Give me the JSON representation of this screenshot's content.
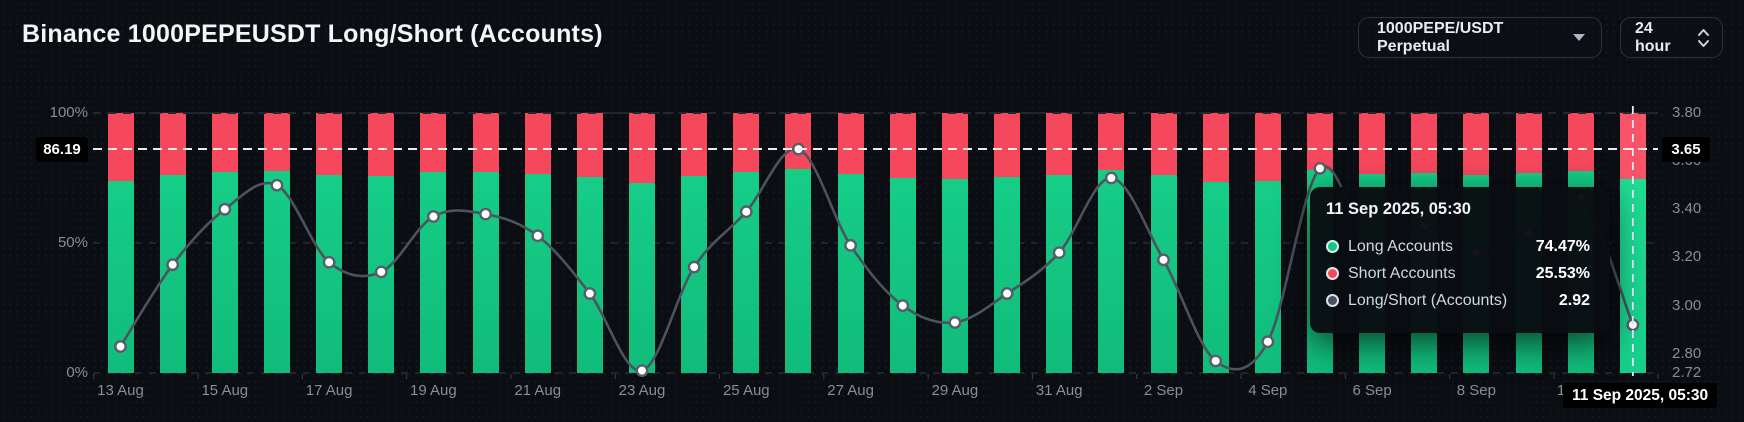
{
  "header": {
    "title": "Binance 1000PEPEUSDT Long/Short (Accounts)",
    "symbol_dropdown": "1000PEPE/USDT Perpetual",
    "interval_dropdown": "24 hour"
  },
  "colors": {
    "long": "#14C784",
    "short": "#F5485D",
    "long_highlight": "#1FDB93",
    "short_highlight": "#F9536A",
    "ratio_line": "#4C525E",
    "marker_fill": "#FFFFFF",
    "marker_ring": "#565D6B",
    "axis_text": "#878E99",
    "crosshair": "#E8EBEF",
    "grid": "#262B34",
    "label_box_bg": "#000000"
  },
  "axes": {
    "left_ticks": [
      "100%",
      "50%",
      "0%"
    ],
    "right_ticks": [
      "3.80",
      "3.60",
      "3.40",
      "3.20",
      "3.00",
      "2.80",
      "2.72"
    ],
    "x_ticks": [
      "13 Aug",
      "15 Aug",
      "17 Aug",
      "19 Aug",
      "21 Aug",
      "23 Aug",
      "25 Aug",
      "27 Aug",
      "29 Aug",
      "31 Aug",
      "2 Sep",
      "4 Sep",
      "6 Sep",
      "8 Sep",
      "10 Sep"
    ]
  },
  "crosshair": {
    "y_left_value": "86.19",
    "y_right_value": "3.65",
    "x_value": "11 Sep 2025, 05:30"
  },
  "tooltip": {
    "title": "11 Sep 2025, 05:30",
    "rows": [
      {
        "label": "Long Accounts",
        "value": "74.47%",
        "color": "#14C784"
      },
      {
        "label": "Short Accounts",
        "value": "25.53%",
        "color": "#F5485D"
      },
      {
        "label": "Long/Short (Accounts)",
        "value": "2.92",
        "color": "#4A5160"
      }
    ]
  },
  "chart_data": {
    "type": "bar",
    "subtype": "stacked-percent-bars-with-ratio-line",
    "title": "Binance 1000PEPEUSDT Long/Short (Accounts)",
    "categories": [
      "13 Aug",
      "14 Aug",
      "15 Aug",
      "16 Aug",
      "17 Aug",
      "18 Aug",
      "19 Aug",
      "20 Aug",
      "21 Aug",
      "22 Aug",
      "23 Aug",
      "24 Aug",
      "25 Aug",
      "26 Aug",
      "27 Aug",
      "28 Aug",
      "29 Aug",
      "30 Aug",
      "31 Aug",
      "1 Sep",
      "2 Sep",
      "3 Sep",
      "4 Sep",
      "5 Sep",
      "6 Sep",
      "7 Sep",
      "8 Sep",
      "9 Sep",
      "10 Sep",
      "11 Sep"
    ],
    "series": [
      {
        "name": "Long Accounts",
        "type": "bar",
        "stack": true,
        "axis": "left",
        "unit": "%",
        "values": [
          73.89,
          76.02,
          77.27,
          77.78,
          76.08,
          75.85,
          77.12,
          77.17,
          76.69,
          75.31,
          73.19,
          75.96,
          77.22,
          78.49,
          76.47,
          75.0,
          74.55,
          75.31,
          76.3,
          77.92,
          76.13,
          73.47,
          74.03,
          78.12,
          76.47,
          76.91,
          76.3,
          76.74,
          77.53,
          74.47
        ]
      },
      {
        "name": "Short Accounts",
        "type": "bar",
        "stack": true,
        "axis": "left",
        "unit": "%",
        "values": [
          26.11,
          23.98,
          22.73,
          22.22,
          23.92,
          24.15,
          22.88,
          22.83,
          23.31,
          24.69,
          26.81,
          24.04,
          22.78,
          21.51,
          23.53,
          25.0,
          25.45,
          24.69,
          23.7,
          22.08,
          23.87,
          26.53,
          25.97,
          21.88,
          23.53,
          23.09,
          23.7,
          23.26,
          22.47,
          25.53
        ]
      },
      {
        "name": "Long/Short (Accounts)",
        "type": "line",
        "axis": "right",
        "values": [
          2.83,
          3.17,
          3.4,
          3.5,
          3.18,
          3.14,
          3.37,
          3.38,
          3.29,
          3.05,
          2.73,
          3.16,
          3.39,
          3.65,
          3.25,
          3.0,
          2.93,
          3.05,
          3.22,
          3.53,
          3.19,
          2.77,
          2.85,
          3.57,
          3.25,
          3.33,
          3.22,
          3.3,
          3.45,
          2.92
        ]
      }
    ],
    "y_axis_left": {
      "min": 0,
      "max": 100,
      "unit": "%"
    },
    "y_axis_right": {
      "min": 2.72,
      "max": 3.8
    },
    "legend_position": "tooltip-only",
    "grid": "dashed-horizontal"
  }
}
